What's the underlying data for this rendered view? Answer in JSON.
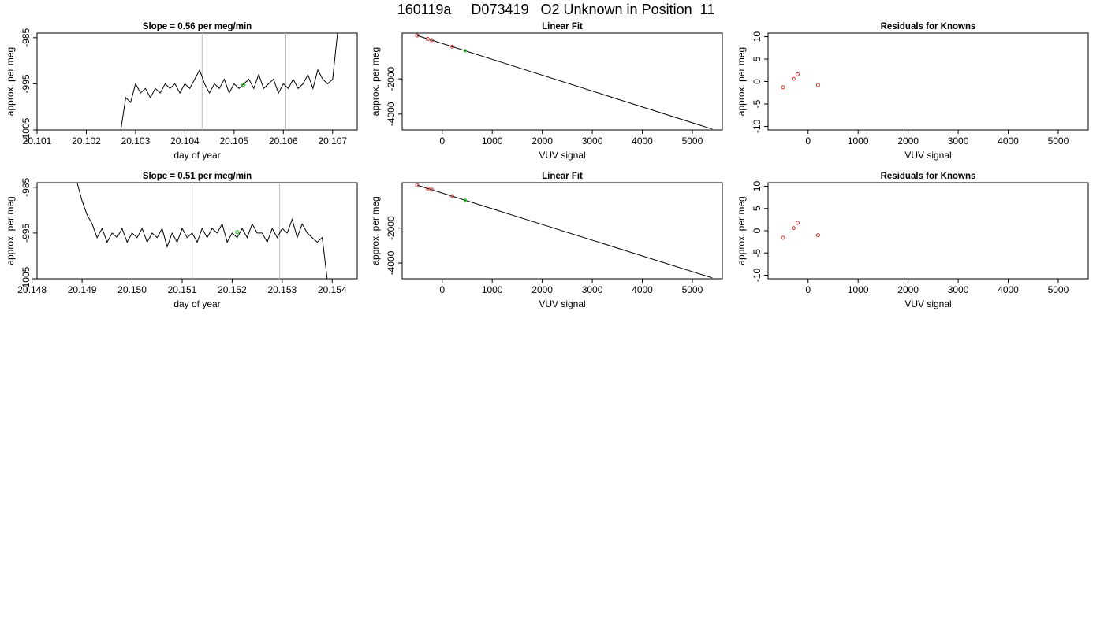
{
  "page": {
    "title": "160119a     D073419   O2 Unknown in Position  11"
  },
  "chart_data": [
    {
      "type": "line",
      "panel": "time-series",
      "title": "Slope =  0.56  per meg/min",
      "xlabel": "day of year",
      "ylabel": "approx. per meg",
      "xlim": [
        20.101,
        20.1075
      ],
      "ylim": [
        -1005,
        -984
      ],
      "xticks": [
        20.101,
        20.102,
        20.103,
        20.104,
        20.105,
        20.106,
        20.107
      ],
      "xticklabels": [
        "20.101",
        "20.102",
        "20.103",
        "20.104",
        "20.105",
        "20.106",
        "20.107"
      ],
      "yticks": [
        -1005,
        -995,
        -985
      ],
      "yticklabels": [
        "-1005",
        "-995",
        "-985"
      ],
      "grid": false,
      "series": [
        {
          "color": "#000000",
          "x": [
            20.1027,
            20.1028,
            20.1029,
            20.103,
            20.1031,
            20.1032,
            20.1033,
            20.1034,
            20.1035,
            20.1036,
            20.1037,
            20.1038,
            20.1039,
            20.104,
            20.1041,
            20.1042,
            20.1043,
            20.1044,
            20.1045,
            20.1046,
            20.1047,
            20.1048,
            20.1049,
            20.105,
            20.1051,
            20.1052,
            20.1053,
            20.1054,
            20.1055,
            20.1056,
            20.1057,
            20.1058,
            20.1059,
            20.106,
            20.1061,
            20.1062,
            20.1063,
            20.1064,
            20.1065,
            20.1066,
            20.1067,
            20.1068,
            20.1069,
            20.107,
            20.1071
          ],
          "y": [
            -1005,
            -998,
            -999,
            -995,
            -997,
            -996,
            -998,
            -996,
            -997,
            -995,
            -996,
            -995,
            -997,
            -995,
            -996,
            -994,
            -992,
            -995,
            -997,
            -995,
            -996,
            -994,
            -997,
            -995,
            -996,
            -995,
            -994,
            -996,
            -993,
            -996,
            -995,
            -994,
            -997,
            -995,
            -996,
            -994,
            -996,
            -995,
            -993,
            -996,
            -992,
            -994,
            -995,
            -994,
            -984
          ]
        }
      ],
      "vlines": [
        20.10435,
        20.10605
      ],
      "marker": {
        "x": 20.10519,
        "y": -995.2,
        "color": "#33cc33"
      }
    },
    {
      "type": "scatter",
      "panel": "linear-fit",
      "title": "Linear Fit",
      "xlabel": "VUV signal",
      "ylabel": "approx. per meg",
      "xlim": [
        -800,
        5600
      ],
      "ylim": [
        -4900,
        600
      ],
      "xticks": [
        0,
        1000,
        2000,
        3000,
        4000,
        5000
      ],
      "xticklabels": [
        "0",
        "1000",
        "2000",
        "3000",
        "4000",
        "5000"
      ],
      "yticks": [
        -4000,
        -2000
      ],
      "yticklabels": [
        "-4000",
        "-2000"
      ],
      "grid": false,
      "line": {
        "x": [
          -500,
          5400
        ],
        "y": [
          459,
          -4852
        ],
        "color": "#000000"
      },
      "knowns": {
        "x": [
          -500,
          -290,
          -210,
          200
        ],
        "y": [
          459,
          270,
          198,
          -172
        ],
        "color": "#cc3333"
      },
      "unknown": {
        "x": [
          460,
          460
        ],
        "y": [
          -405,
          -405
        ],
        "color": "#33cc33"
      }
    },
    {
      "type": "scatter",
      "panel": "residuals",
      "title": "Residuals for Knowns",
      "xlabel": "VUV signal",
      "ylabel": "approx. per meg",
      "xlim": [
        -800,
        5600
      ],
      "ylim": [
        -10.8,
        10.8
      ],
      "xticks": [
        0,
        1000,
        2000,
        3000,
        4000,
        5000
      ],
      "xticklabels": [
        "0",
        "1000",
        "2000",
        "3000",
        "4000",
        "5000"
      ],
      "yticks": [
        -10,
        -5,
        0,
        5,
        10
      ],
      "yticklabels": [
        "-10",
        "-5",
        "0",
        "5",
        "10"
      ],
      "grid": false,
      "knowns": {
        "x": [
          -500,
          -290,
          -210,
          200
        ],
        "y": [
          -1.3,
          0.6,
          1.6,
          -0.8
        ],
        "color": "#cc3333"
      }
    },
    {
      "type": "line",
      "panel": "time-series",
      "title": "Slope =  0.51  per meg/min",
      "xlabel": "day of year",
      "ylabel": "approx. per meg",
      "xlim": [
        20.1481,
        20.1545
      ],
      "ylim": [
        -1005,
        -984
      ],
      "xticks": [
        20.148,
        20.149,
        20.15,
        20.151,
        20.152,
        20.153,
        20.154
      ],
      "xticklabels": [
        "20.148",
        "20.149",
        "20.150",
        "20.151",
        "20.152",
        "20.153",
        "20.154"
      ],
      "yticks": [
        -1005,
        -995,
        -985
      ],
      "yticklabels": [
        "-1005",
        "-995",
        "-985"
      ],
      "grid": false,
      "series": [
        {
          "color": "#000000",
          "x": [
            20.1489,
            20.149,
            20.1491,
            20.1492,
            20.1493,
            20.1494,
            20.1495,
            20.1496,
            20.1497,
            20.1498,
            20.1499,
            20.15,
            20.1501,
            20.1502,
            20.1503,
            20.1504,
            20.1505,
            20.1506,
            20.1507,
            20.1508,
            20.1509,
            20.151,
            20.1511,
            20.1512,
            20.1513,
            20.1514,
            20.1515,
            20.1516,
            20.1517,
            20.1518,
            20.1519,
            20.152,
            20.1521,
            20.1522,
            20.1523,
            20.1524,
            20.1525,
            20.1526,
            20.1527,
            20.1528,
            20.1529,
            20.153,
            20.1531,
            20.1532,
            20.1533,
            20.1534,
            20.1535,
            20.1536,
            20.1537,
            20.1538,
            20.1539
          ],
          "y": [
            -984,
            -988,
            -991,
            -993,
            -996,
            -994,
            -997,
            -995,
            -996,
            -994,
            -997,
            -995,
            -996,
            -994,
            -997,
            -995,
            -996,
            -994,
            -998,
            -995,
            -997,
            -994,
            -996,
            -995,
            -997,
            -994,
            -996,
            -994,
            -995,
            -993,
            -997,
            -995,
            -996,
            -994,
            -996,
            -993,
            -995,
            -995,
            -997,
            -994,
            -996,
            -994,
            -995,
            -992,
            -996,
            -993,
            -995,
            -996,
            -997,
            -996,
            -1005
          ]
        }
      ],
      "vlines": [
        20.1512,
        20.15295
      ],
      "marker": {
        "x": 20.1521,
        "y": -994.8,
        "color": "#33cc33"
      }
    },
    {
      "type": "scatter",
      "panel": "linear-fit",
      "title": "Linear Fit",
      "xlabel": "VUV signal",
      "ylabel": "approx. per meg",
      "xlim": [
        -800,
        5600
      ],
      "ylim": [
        -4900,
        600
      ],
      "xticks": [
        0,
        1000,
        2000,
        3000,
        4000,
        5000
      ],
      "xticklabels": [
        "0",
        "1000",
        "2000",
        "3000",
        "4000",
        "5000"
      ],
      "yticks": [
        -4000,
        -2000
      ],
      "yticklabels": [
        "-4000",
        "-2000"
      ],
      "grid": false,
      "line": {
        "x": [
          -500,
          5400
        ],
        "y": [
          459,
          -4852
        ],
        "color": "#000000"
      },
      "knowns": {
        "x": [
          -500,
          -290,
          -210,
          200
        ],
        "y": [
          459,
          270,
          198,
          -172
        ],
        "color": "#cc3333"
      },
      "unknown": {
        "x": [
          460,
          460
        ],
        "y": [
          -405,
          -405
        ],
        "color": "#33cc33"
      }
    },
    {
      "type": "scatter",
      "panel": "residuals",
      "title": "Residuals for Knowns",
      "xlabel": "VUV signal",
      "ylabel": "approx. per meg",
      "xlim": [
        -800,
        5600
      ],
      "ylim": [
        -10.8,
        10.8
      ],
      "xticks": [
        0,
        1000,
        2000,
        3000,
        4000,
        5000
      ],
      "xticklabels": [
        "0",
        "1000",
        "2000",
        "3000",
        "4000",
        "5000"
      ],
      "yticks": [
        -10,
        -5,
        0,
        5,
        10
      ],
      "yticklabels": [
        "-10",
        "-5",
        "0",
        "5",
        "10"
      ],
      "grid": false,
      "knowns": {
        "x": [
          -500,
          -290,
          -210,
          200
        ],
        "y": [
          -1.6,
          0.6,
          1.8,
          -1.0
        ],
        "color": "#cc3333"
      }
    }
  ]
}
